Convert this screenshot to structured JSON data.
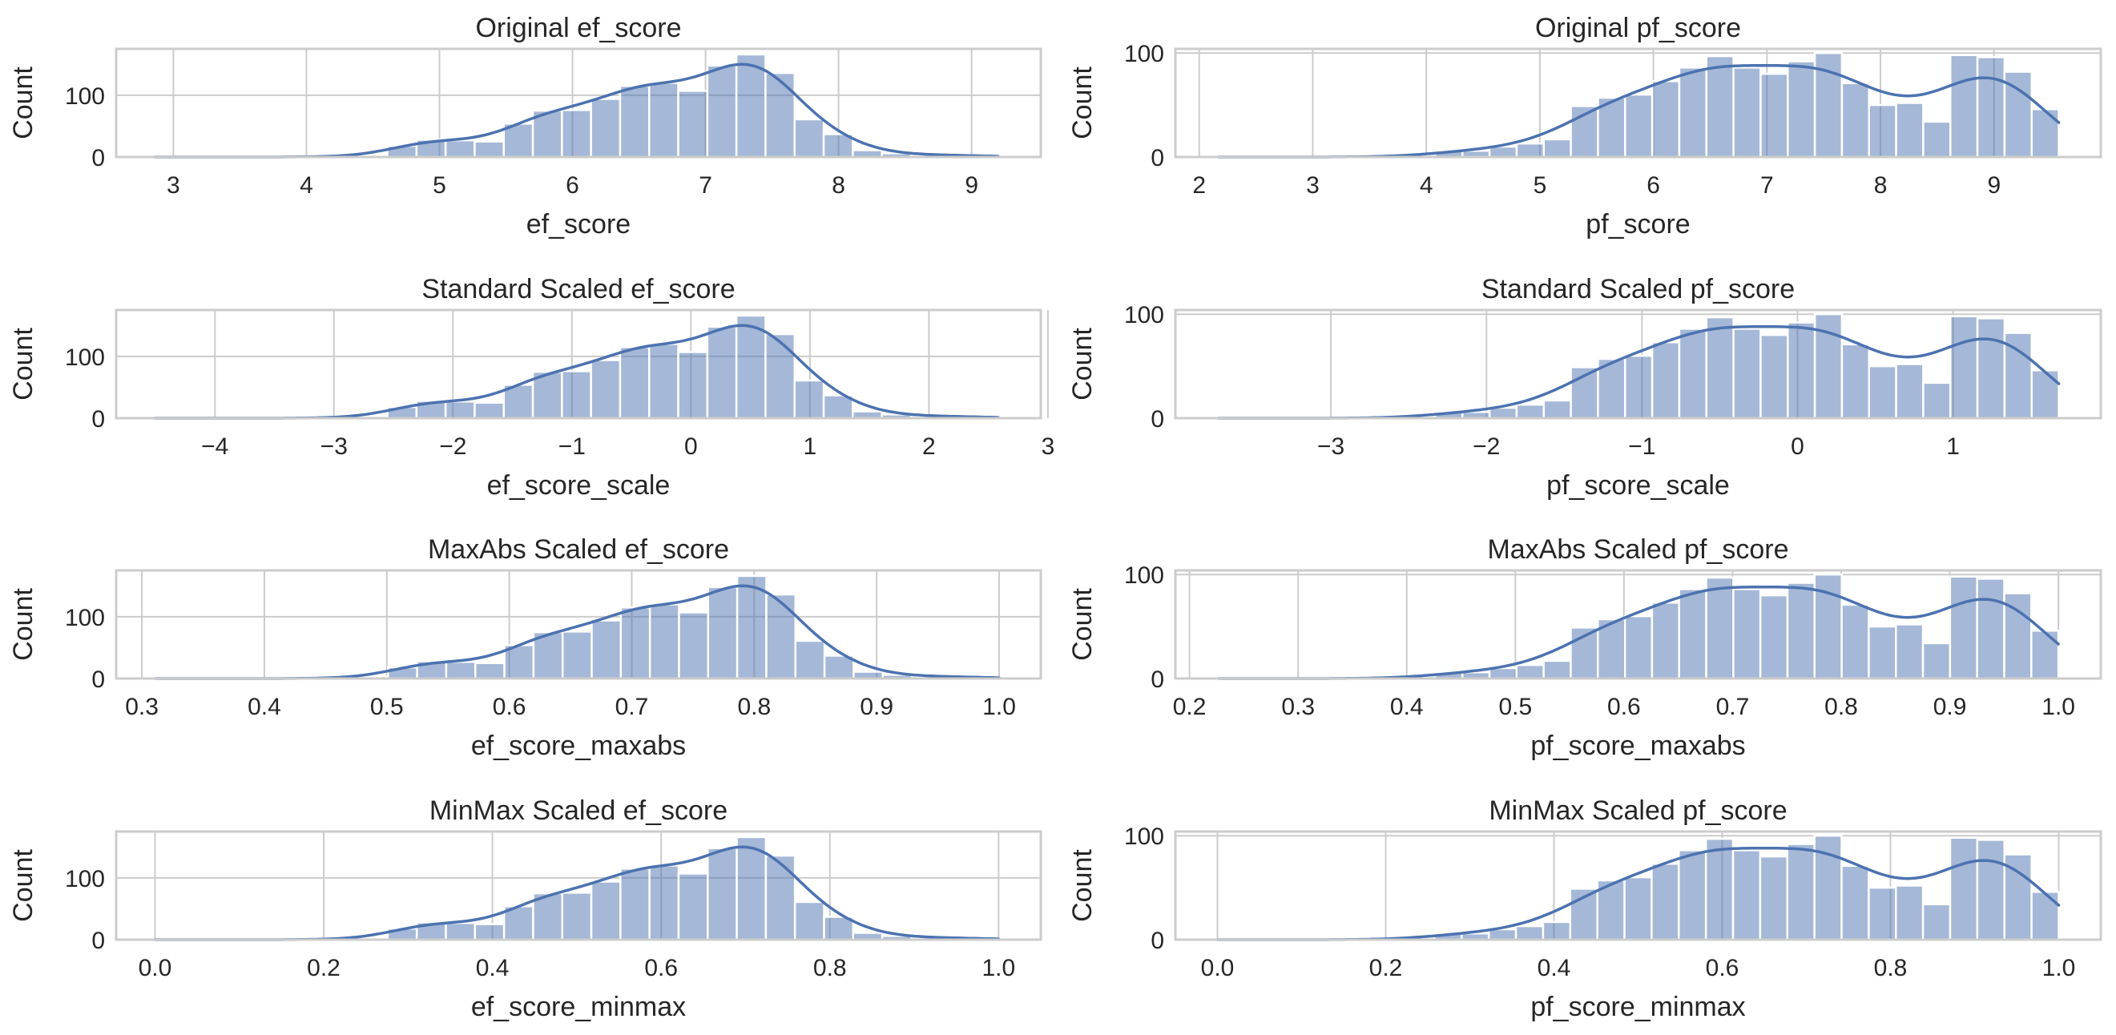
{
  "figure": {
    "layout": "4x2 grid of histograms with KDE overlay",
    "bar_color": "#4c72b0",
    "kde_color": "#4c72b0",
    "grid_color": "#cccccc"
  },
  "chart_data": [
    {
      "type": "bar",
      "subtype": "histogram+kde",
      "title": "Original ef_score",
      "xlabel": "ef_score",
      "ylabel": "Count",
      "xlim": [
        2.57,
        9.52
      ],
      "ylim": [
        0,
        175
      ],
      "xticks": [
        3,
        4,
        5,
        6,
        7,
        8,
        9
      ],
      "xtick_labels": [
        "3",
        "4",
        "5",
        "6",
        "7",
        "8",
        "9"
      ],
      "yticks": [
        0,
        100
      ],
      "ytick_labels": [
        "0",
        "100"
      ],
      "grid": true,
      "bin_start": 2.86,
      "bin_end": 9.2,
      "counts": [
        0,
        0,
        0,
        0,
        0,
        0,
        1,
        3,
        18,
        28,
        27,
        25,
        54,
        75,
        76,
        94,
        115,
        120,
        107,
        148,
        166,
        136,
        61,
        37,
        11,
        6,
        3,
        3,
        2
      ],
      "kde_peak": 150
    },
    {
      "type": "bar",
      "subtype": "histogram+kde",
      "title": "Original pf_score",
      "xlabel": "pf_score",
      "ylabel": "Count",
      "xlim": [
        1.79,
        9.94
      ],
      "ylim": [
        0,
        104
      ],
      "xticks": [
        2,
        3,
        4,
        5,
        6,
        7,
        8,
        9
      ],
      "xtick_labels": [
        "2",
        "3",
        "4",
        "5",
        "6",
        "7",
        "8",
        "9"
      ],
      "yticks": [
        0,
        100
      ],
      "ytick_labels": [
        "0",
        "100"
      ],
      "grid": true,
      "bin_start": 2.17,
      "bin_end": 9.57,
      "counts": [
        0,
        0,
        0,
        0,
        0,
        0,
        0,
        1,
        6,
        6,
        10,
        13,
        17,
        49,
        57,
        60,
        73,
        86,
        97,
        86,
        80,
        92,
        100,
        71,
        50,
        52,
        34,
        98,
        96,
        82,
        46
      ],
      "kde_peak": 88
    },
    {
      "type": "bar",
      "subtype": "histogram+kde",
      "title": "Standard Scaled ef_score",
      "xlabel": "ef_score_scale",
      "ylabel": "Count",
      "xlim": [
        -4.83,
        2.94
      ],
      "ylim": [
        0,
        175
      ],
      "xticks": [
        -4,
        -3,
        -2,
        -1,
        0,
        1,
        2,
        3
      ],
      "xtick_labels": [
        "−4",
        "−3",
        "−2",
        "−1",
        "0",
        "1",
        "2",
        "3"
      ],
      "yticks": [
        0,
        100
      ],
      "ytick_labels": [
        "0",
        "100"
      ],
      "grid": true,
      "same_distribution_as": "Original ef_score"
    },
    {
      "type": "bar",
      "subtype": "histogram+kde",
      "title": "Standard Scaled pf_score",
      "xlabel": "pf_score_scale",
      "ylabel": "Count",
      "xlim": [
        -4.0,
        1.95
      ],
      "ylim": [
        0,
        104
      ],
      "xticks": [
        -3,
        -2,
        -1,
        0,
        1
      ],
      "xtick_labels": [
        "−3",
        "−2",
        "−1",
        "0",
        "1"
      ],
      "yticks": [
        0,
        100
      ],
      "ytick_labels": [
        "0",
        "100"
      ],
      "grid": true,
      "same_distribution_as": "Original pf_score"
    },
    {
      "type": "bar",
      "subtype": "histogram+kde",
      "title": "MaxAbs Scaled ef_score",
      "xlabel": "ef_score_maxabs",
      "ylabel": "Count",
      "xlim": [
        0.279,
        1.034
      ],
      "ylim": [
        0,
        175
      ],
      "xticks": [
        0.3,
        0.4,
        0.5,
        0.6,
        0.7,
        0.8,
        0.9,
        1.0
      ],
      "xtick_labels": [
        "0.3",
        "0.4",
        "0.5",
        "0.6",
        "0.7",
        "0.8",
        "0.9",
        "1.0"
      ],
      "yticks": [
        0,
        100
      ],
      "ytick_labels": [
        "0",
        "100"
      ],
      "grid": true,
      "same_distribution_as": "Original ef_score"
    },
    {
      "type": "bar",
      "subtype": "histogram+kde",
      "title": "MaxAbs Scaled pf_score",
      "xlabel": "pf_score_maxabs",
      "ylabel": "Count",
      "xlim": [
        0.187,
        1.039
      ],
      "ylim": [
        0,
        104
      ],
      "xticks": [
        0.2,
        0.3,
        0.4,
        0.5,
        0.6,
        0.7,
        0.8,
        0.9,
        1.0
      ],
      "xtick_labels": [
        "0.2",
        "0.3",
        "0.4",
        "0.5",
        "0.6",
        "0.7",
        "0.8",
        "0.9",
        "1.0"
      ],
      "yticks": [
        0,
        100
      ],
      "ytick_labels": [
        "0",
        "100"
      ],
      "grid": true,
      "same_distribution_as": "Original pf_score"
    },
    {
      "type": "bar",
      "subtype": "histogram+kde",
      "title": "MinMax Scaled ef_score",
      "xlabel": "ef_score_minmax",
      "ylabel": "Count",
      "xlim": [
        -0.046,
        1.05
      ],
      "ylim": [
        0,
        175
      ],
      "xticks": [
        0.0,
        0.2,
        0.4,
        0.6,
        0.8,
        1.0
      ],
      "xtick_labels": [
        "0.0",
        "0.2",
        "0.4",
        "0.6",
        "0.8",
        "1.0"
      ],
      "yticks": [
        0,
        100
      ],
      "ytick_labels": [
        "0",
        "100"
      ],
      "grid": true,
      "same_distribution_as": "Original ef_score"
    },
    {
      "type": "bar",
      "subtype": "histogram+kde",
      "title": "MinMax Scaled pf_score",
      "xlabel": "pf_score_minmax",
      "ylabel": "Count",
      "xlim": [
        -0.05,
        1.05
      ],
      "ylim": [
        0,
        104
      ],
      "xticks": [
        0.0,
        0.2,
        0.4,
        0.6,
        0.8,
        1.0
      ],
      "xtick_labels": [
        "0.0",
        "0.2",
        "0.4",
        "0.6",
        "0.8",
        "1.0"
      ],
      "yticks": [
        0,
        100
      ],
      "ytick_labels": [
        "0",
        "100"
      ],
      "grid": true,
      "same_distribution_as": "Original pf_score"
    }
  ]
}
